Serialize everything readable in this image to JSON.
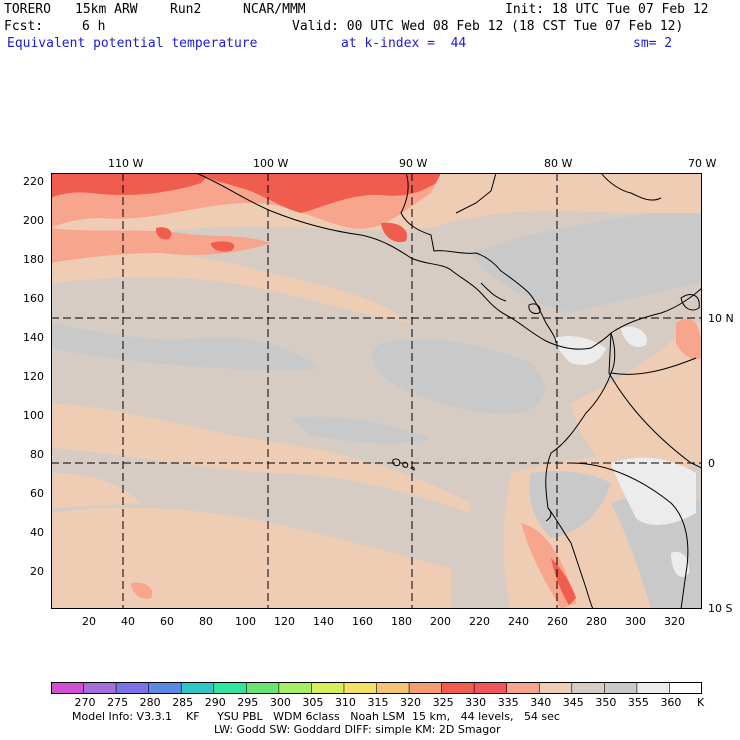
{
  "header": {
    "model": "TORERO",
    "resolution": "15km ARW",
    "run": "Run2",
    "org": "NCAR/MMM",
    "init": "Init: 18 UTC Tue 07 Feb 12",
    "fcst_label": "Fcst:",
    "fcst_value": "6 h",
    "valid": "Valid: 00 UTC Wed 08 Feb 12 (18 CST Tue 07 Feb 12)",
    "field": "Equivalent potential temperature",
    "level": "at k-index =  44",
    "smoothing": "sm= 2"
  },
  "map": {
    "lon_labels": [
      "110 W",
      "100 W",
      "90 W",
      "80 W",
      "70 W"
    ],
    "lat_labels": [
      "10 N",
      "0",
      "10 S"
    ],
    "y_ticks": [
      "220",
      "200",
      "180",
      "160",
      "140",
      "120",
      "100",
      "80",
      "60",
      "40",
      "20"
    ],
    "x_ticks": [
      "20",
      "40",
      "60",
      "80",
      "100",
      "120",
      "140",
      "160",
      "180",
      "200",
      "220",
      "240",
      "260",
      "280",
      "300",
      "320"
    ],
    "field_units": "K",
    "field_range": [
      270,
      360
    ],
    "background_class": "345-350 K"
  },
  "colorbar": {
    "labels": [
      "270",
      "275",
      "280",
      "285",
      "290",
      "295",
      "300",
      "305",
      "310",
      "315",
      "320",
      "325",
      "330",
      "335",
      "340",
      "345",
      "350",
      "355",
      "360"
    ],
    "unit": "K",
    "colors": [
      "#d24fd2",
      "#a56fd9",
      "#7c73e8",
      "#5a8ae6",
      "#2ec7c5",
      "#31e6a0",
      "#66e56f",
      "#a7ef65",
      "#d9ef5a",
      "#f5e066",
      "#f5c274",
      "#f59c6e",
      "#f05c4e",
      "#f2565c",
      "#f8a58d",
      "#efcdb4",
      "#d6ccc4",
      "#c9c9c9",
      "#ececec",
      "#ffffff"
    ]
  },
  "footer": {
    "line1": "Model Info: V3.3.1    KF     YSU PBL   WDM 6class   Noah LSM  15 km,   44 levels,   54 sec",
    "line2": "LW: Godd SW: Goddard DIFF: simple KM: 2D Smagor"
  }
}
